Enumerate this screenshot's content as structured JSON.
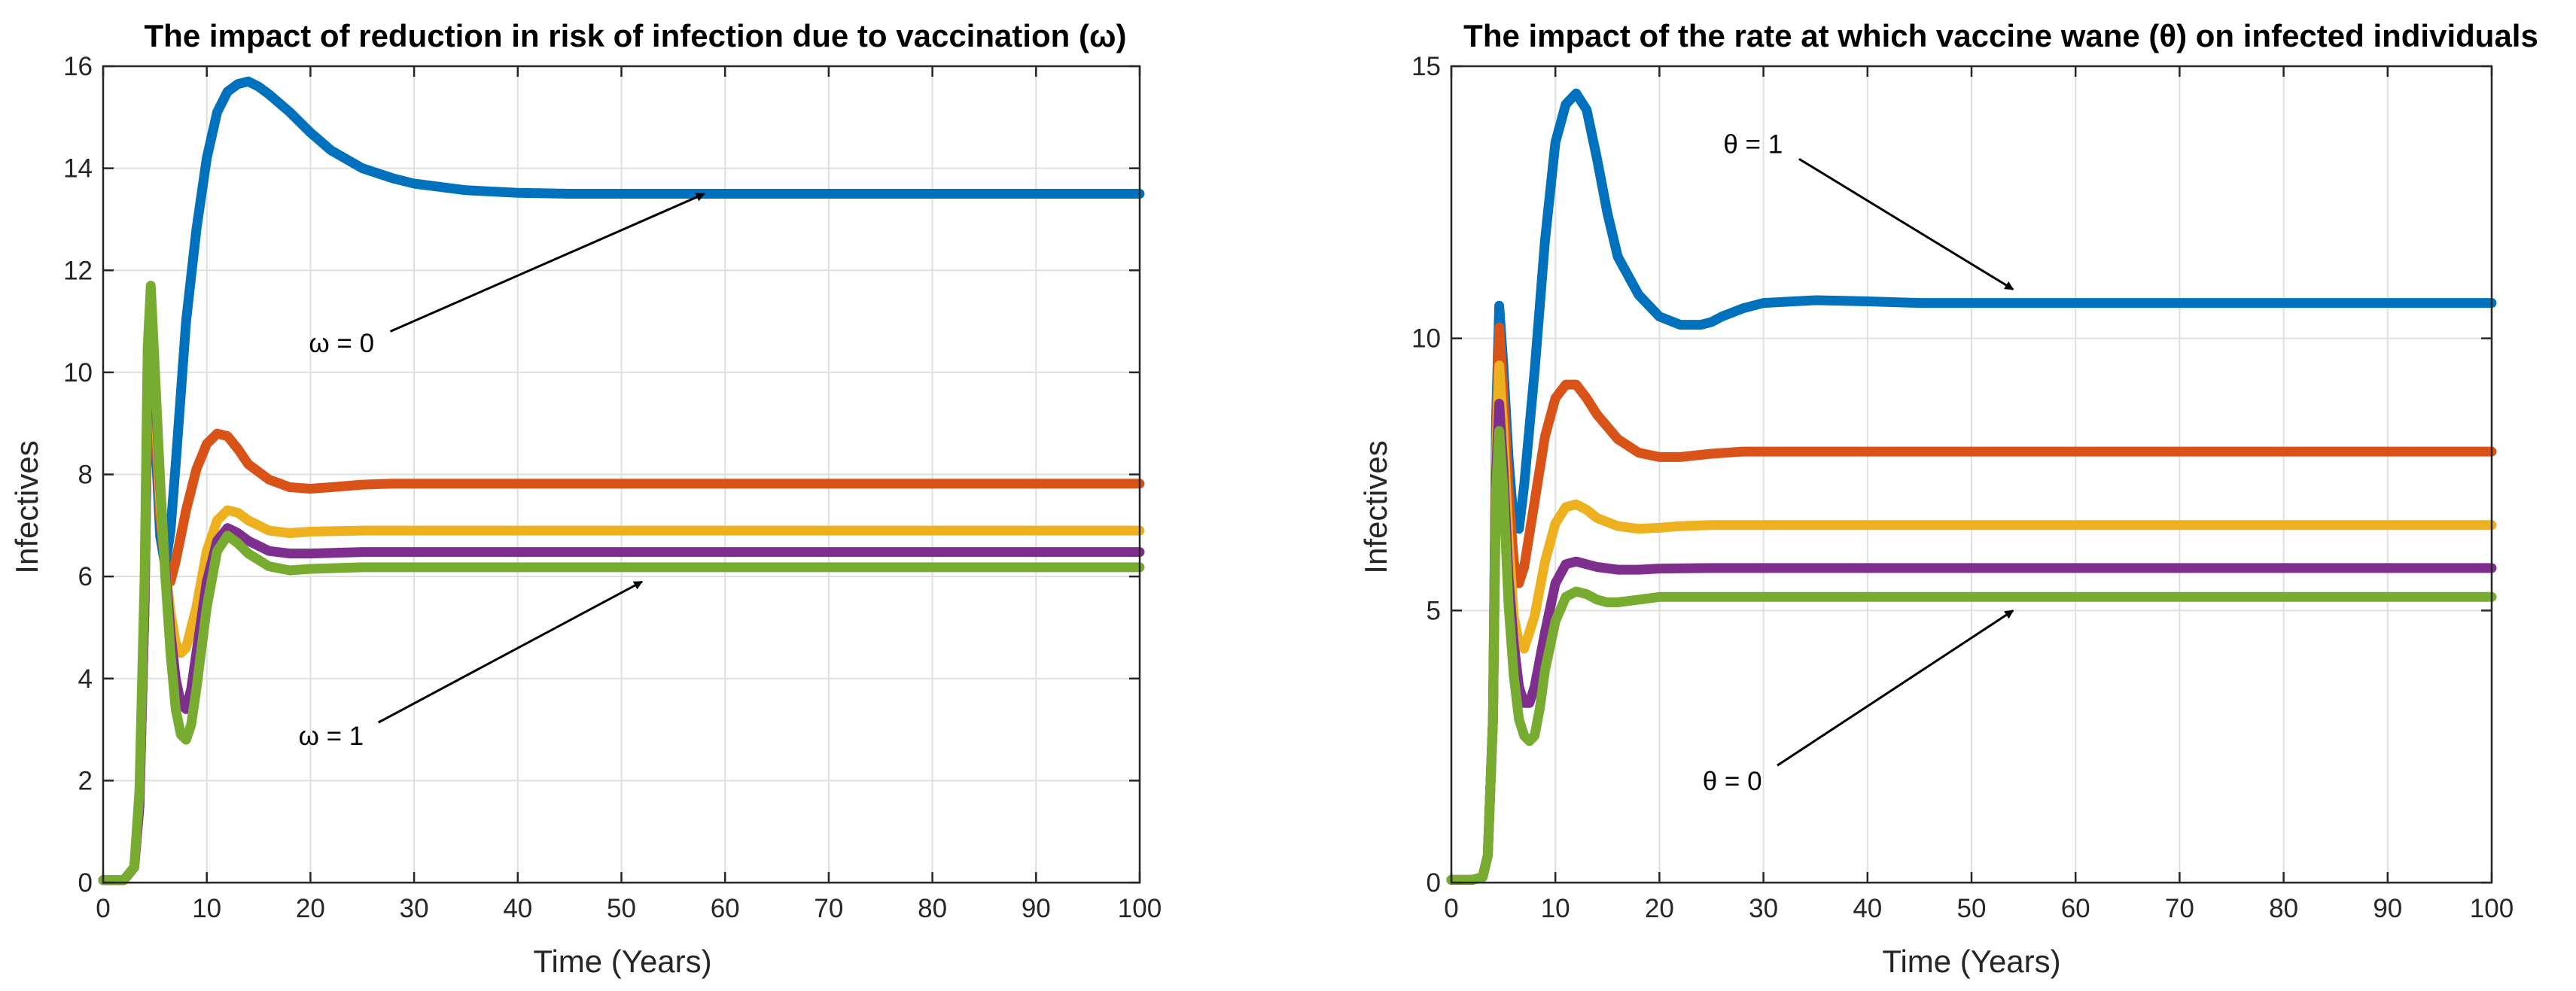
{
  "chart_data": [
    {
      "type": "line",
      "title": "The impact of reduction in risk of infection due to vaccination (ω)",
      "xlabel": "Time (Years)",
      "ylabel": "Infectives",
      "xlim": [
        0,
        100
      ],
      "ylim": [
        0,
        16
      ],
      "xticks": [
        0,
        10,
        20,
        30,
        40,
        50,
        60,
        70,
        80,
        90,
        100
      ],
      "yticks": [
        0,
        2,
        4,
        6,
        8,
        10,
        12,
        14,
        16
      ],
      "grid": true,
      "annotations": [
        {
          "text": "ω = 0",
          "point": [
            58,
            13.5
          ],
          "text_at": [
            23,
            10.4
          ]
        },
        {
          "text": "ω = 1",
          "point": [
            52,
            5.9
          ],
          "text_at": [
            22,
            2.7
          ]
        }
      ],
      "series": [
        {
          "color": "#0072BD",
          "x": [
            0,
            2,
            3,
            3.5,
            4,
            4.3,
            4.6,
            5,
            5.5,
            6,
            6.5,
            7,
            7.5,
            8,
            9,
            10,
            11,
            12,
            13,
            14,
            15,
            16,
            18,
            20,
            22,
            25,
            28,
            30,
            35,
            40,
            45,
            50,
            55,
            60,
            70,
            80,
            90,
            100
          ],
          "y": [
            0.05,
            0.05,
            0.3,
            1.5,
            5.5,
            9.5,
            10.5,
            8.8,
            6.8,
            6.2,
            6.9,
            8.2,
            9.6,
            11,
            12.8,
            14.2,
            15.1,
            15.5,
            15.65,
            15.7,
            15.6,
            15.45,
            15.1,
            14.7,
            14.35,
            14,
            13.8,
            13.7,
            13.57,
            13.52,
            13.5,
            13.5,
            13.5,
            13.5,
            13.5,
            13.5,
            13.5,
            13.5
          ]
        },
        {
          "color": "#D95319",
          "x": [
            0,
            2,
            3,
            3.5,
            4,
            4.3,
            4.6,
            5,
            5.5,
            6,
            6.5,
            7,
            8,
            9,
            10,
            11,
            12,
            13,
            14,
            16,
            18,
            20,
            22,
            25,
            28,
            30,
            40,
            50,
            60,
            70,
            80,
            90,
            100
          ],
          "y": [
            0.05,
            0.05,
            0.3,
            1.5,
            5.5,
            9.8,
            10.8,
            9.2,
            7.2,
            6.2,
            5.9,
            6.3,
            7.3,
            8.1,
            8.6,
            8.8,
            8.75,
            8.5,
            8.2,
            7.9,
            7.75,
            7.72,
            7.75,
            7.8,
            7.82,
            7.82,
            7.82,
            7.82,
            7.82,
            7.82,
            7.82,
            7.82,
            7.82
          ]
        },
        {
          "color": "#EDB120",
          "x": [
            0,
            2,
            3,
            3.5,
            4,
            4.3,
            4.6,
            5,
            5.5,
            6,
            6.5,
            7,
            7.5,
            8,
            9,
            10,
            11,
            12,
            13,
            14,
            16,
            18,
            20,
            25,
            30,
            40,
            50,
            60,
            70,
            80,
            90,
            100
          ],
          "y": [
            0.05,
            0.05,
            0.3,
            1.5,
            5.5,
            10,
            11.2,
            9.5,
            7.5,
            6.2,
            5.3,
            4.7,
            4.5,
            4.6,
            5.4,
            6.5,
            7.1,
            7.3,
            7.25,
            7.1,
            6.9,
            6.85,
            6.88,
            6.9,
            6.9,
            6.9,
            6.9,
            6.9,
            6.9,
            6.9,
            6.9,
            6.9
          ]
        },
        {
          "color": "#7E2F8E",
          "x": [
            0,
            2,
            3,
            3.5,
            4,
            4.3,
            4.6,
            5,
            5.5,
            6,
            6.5,
            7,
            7.5,
            8,
            8.5,
            9,
            10,
            11,
            12,
            13,
            14,
            16,
            18,
            20,
            25,
            30,
            40,
            50,
            60,
            70,
            80,
            90,
            100
          ],
          "y": [
            0.05,
            0.05,
            0.3,
            1.5,
            5.5,
            10.2,
            11.5,
            9.8,
            7.8,
            6.2,
            4.9,
            4.0,
            3.5,
            3.4,
            3.8,
            4.5,
            5.9,
            6.7,
            6.95,
            6.85,
            6.7,
            6.5,
            6.45,
            6.45,
            6.48,
            6.48,
            6.48,
            6.48,
            6.48,
            6.48,
            6.48,
            6.48,
            6.48
          ]
        },
        {
          "color": "#77AC30",
          "x": [
            0,
            2,
            3,
            3.5,
            4,
            4.3,
            4.6,
            5,
            5.5,
            6,
            6.5,
            7,
            7.5,
            8,
            8.5,
            9,
            10,
            11,
            12,
            13,
            14,
            16,
            18,
            20,
            25,
            30,
            40,
            50,
            60,
            70,
            80,
            90,
            100
          ],
          "y": [
            0.05,
            0.05,
            0.3,
            1.8,
            6,
            10.5,
            11.7,
            10,
            7.9,
            6.0,
            4.5,
            3.4,
            2.9,
            2.8,
            3.1,
            3.8,
            5.4,
            6.5,
            6.8,
            6.65,
            6.45,
            6.2,
            6.12,
            6.15,
            6.18,
            6.18,
            6.18,
            6.18,
            6.18,
            6.18,
            6.18,
            6.18,
            6.18
          ]
        }
      ]
    },
    {
      "type": "line",
      "title": "The impact of the rate at which vaccine wane (θ) on infected individuals",
      "xlabel": "Time (Years)",
      "ylabel": "Infectives",
      "xlim": [
        0,
        100
      ],
      "ylim": [
        0,
        15
      ],
      "xticks": [
        0,
        10,
        20,
        30,
        40,
        50,
        60,
        70,
        80,
        90,
        100
      ],
      "yticks": [
        0,
        5,
        10,
        15
      ],
      "grid": true,
      "annotations": [
        {
          "text": "θ = 1",
          "point": [
            54,
            10.9
          ],
          "text_at": [
            29,
            13.4
          ]
        },
        {
          "text": "θ = 0",
          "point": [
            54,
            5.0
          ],
          "text_at": [
            27,
            1.7
          ]
        }
      ],
      "series": [
        {
          "color": "#0072BD",
          "x": [
            0,
            2,
            3,
            3.5,
            4,
            4.3,
            4.6,
            5,
            5.5,
            6,
            6.5,
            7,
            8,
            9,
            10,
            11,
            12,
            13,
            14,
            15,
            16,
            18,
            20,
            22,
            24,
            25,
            26,
            28,
            30,
            35,
            40,
            45,
            50,
            60,
            70,
            80,
            90,
            100
          ],
          "y": [
            0.05,
            0.05,
            0.1,
            0.5,
            3,
            8.5,
            10.6,
            9.5,
            7.8,
            6.6,
            6.5,
            7.3,
            9.4,
            11.8,
            13.6,
            14.3,
            14.5,
            14.2,
            13.3,
            12.3,
            11.5,
            10.8,
            10.4,
            10.25,
            10.25,
            10.3,
            10.4,
            10.55,
            10.65,
            10.7,
            10.68,
            10.65,
            10.65,
            10.65,
            10.65,
            10.65,
            10.65,
            10.65
          ]
        },
        {
          "color": "#D95319",
          "x": [
            0,
            2,
            3,
            3.5,
            4,
            4.3,
            4.6,
            5,
            5.5,
            6,
            6.5,
            7,
            8,
            9,
            10,
            11,
            12,
            13,
            14,
            16,
            18,
            20,
            22,
            25,
            28,
            30,
            40,
            50,
            60,
            70,
            80,
            90,
            100
          ],
          "y": [
            0.05,
            0.05,
            0.1,
            0.5,
            3,
            8,
            10.2,
            9.0,
            7.2,
            5.9,
            5.5,
            5.8,
            7.0,
            8.2,
            8.9,
            9.15,
            9.15,
            8.9,
            8.6,
            8.15,
            7.9,
            7.82,
            7.82,
            7.88,
            7.92,
            7.92,
            7.92,
            7.92,
            7.92,
            7.92,
            7.92,
            7.92,
            7.92
          ]
        },
        {
          "color": "#EDB120",
          "x": [
            0,
            2,
            3,
            3.5,
            4,
            4.3,
            4.6,
            5,
            5.5,
            6,
            6.5,
            7,
            8,
            9,
            10,
            11,
            12,
            13,
            14,
            16,
            18,
            20,
            22,
            25,
            30,
            40,
            50,
            60,
            70,
            80,
            90,
            100
          ],
          "y": [
            0.05,
            0.05,
            0.1,
            0.5,
            3,
            7.8,
            9.5,
            8.3,
            6.3,
            4.9,
            4.4,
            4.3,
            4.9,
            5.9,
            6.6,
            6.9,
            6.95,
            6.85,
            6.7,
            6.55,
            6.5,
            6.52,
            6.55,
            6.57,
            6.57,
            6.57,
            6.57,
            6.57,
            6.57,
            6.57,
            6.57,
            6.57
          ]
        },
        {
          "color": "#7E2F8E",
          "x": [
            0,
            2,
            3,
            3.5,
            4,
            4.3,
            4.6,
            5,
            5.5,
            6,
            6.5,
            7,
            7.5,
            8,
            9,
            10,
            11,
            12,
            13,
            14,
            16,
            18,
            20,
            25,
            30,
            40,
            50,
            60,
            70,
            80,
            90,
            100
          ],
          "y": [
            0.05,
            0.05,
            0.1,
            0.5,
            3,
            7.5,
            8.8,
            7.6,
            5.6,
            4.4,
            3.6,
            3.3,
            3.3,
            3.6,
            4.6,
            5.5,
            5.85,
            5.9,
            5.85,
            5.8,
            5.75,
            5.75,
            5.77,
            5.78,
            5.78,
            5.78,
            5.78,
            5.78,
            5.78,
            5.78,
            5.78,
            5.78
          ]
        },
        {
          "color": "#77AC30",
          "x": [
            0,
            2,
            3,
            3.5,
            4,
            4.3,
            4.6,
            5,
            5.5,
            6,
            6.5,
            7,
            7.5,
            8,
            8.5,
            9,
            10,
            11,
            12,
            13,
            14,
            15,
            16,
            18,
            20,
            25,
            30,
            40,
            50,
            60,
            70,
            80,
            90,
            100
          ],
          "y": [
            0.05,
            0.05,
            0.1,
            0.5,
            3,
            7.2,
            8.3,
            7.2,
            5.1,
            3.8,
            3.0,
            2.7,
            2.6,
            2.7,
            3.2,
            3.9,
            4.8,
            5.25,
            5.35,
            5.3,
            5.2,
            5.15,
            5.15,
            5.2,
            5.25,
            5.25,
            5.25,
            5.25,
            5.25,
            5.25,
            5.25,
            5.25,
            5.25,
            5.25
          ]
        }
      ]
    }
  ]
}
